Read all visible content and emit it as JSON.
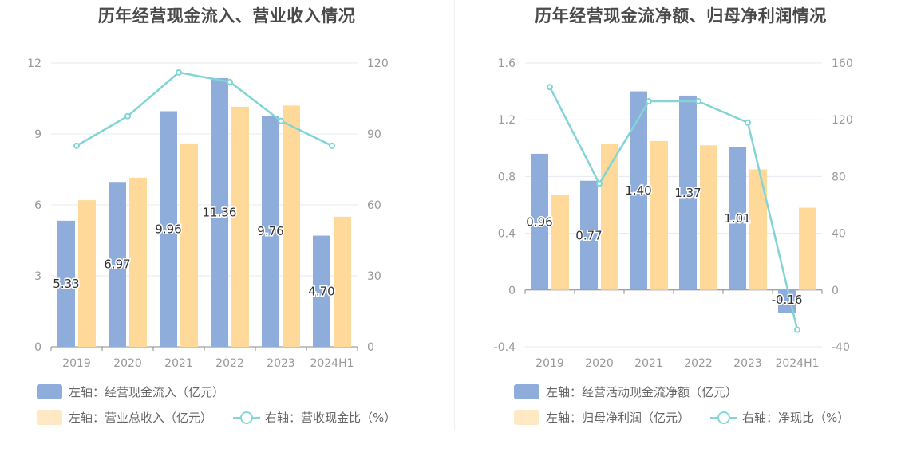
{
  "colors": {
    "bar1": "#8eaddb",
    "bar2": "#ffd99a",
    "line": "#82d4d6",
    "axis": "#999999",
    "grid": "#e6e9f2",
    "label": "#333333"
  },
  "left": {
    "title": "历年经营现金流入、营业收入情况",
    "legend": {
      "bar1": "左轴：经营现金流入（亿元）",
      "bar2": "左轴：营业总收入（亿元）",
      "line": "右轴：营收现金比（%）"
    }
  },
  "right": {
    "title": "历年经营现金流净额、归母净利润情况",
    "legend": {
      "bar1": "左轴：经营活动现金流净额（亿元）",
      "bar2": "左轴：归母净利润（亿元）",
      "line": "右轴：净现比（%）"
    }
  },
  "chart_data": [
    {
      "type": "bar",
      "title": "历年经营现金流入、营业收入情况",
      "categories": [
        "2019",
        "2020",
        "2021",
        "2022",
        "2023",
        "2024H1"
      ],
      "ylim_left": [
        0,
        12
      ],
      "yticks_left": [
        "0",
        "3",
        "6",
        "9",
        "12"
      ],
      "ylim_right": [
        0,
        120
      ],
      "yticks_right": [
        "0",
        "30",
        "60",
        "90",
        "120"
      ],
      "series": [
        {
          "name": "左轴：经营现金流入（亿元）",
          "axis": "left",
          "kind": "bar",
          "values": [
            5.33,
            6.97,
            9.96,
            11.36,
            9.76,
            4.7
          ],
          "labels": [
            "5.33",
            "6.97",
            "9.96",
            "11.36",
            "9.76",
            "4.70"
          ]
        },
        {
          "name": "左轴：营业总收入（亿元）",
          "axis": "left",
          "kind": "bar",
          "values": [
            6.2,
            7.15,
            8.6,
            10.15,
            10.2,
            5.5
          ]
        },
        {
          "name": "右轴：营收现金比（%）",
          "axis": "right",
          "kind": "line",
          "values": [
            85,
            97.5,
            116,
            112,
            95.5,
            85
          ]
        }
      ]
    },
    {
      "type": "bar",
      "title": "历年经营现金流净额、归母净利润情况",
      "categories": [
        "2019",
        "2020",
        "2021",
        "2022",
        "2023",
        "2024H1"
      ],
      "ylim_left": [
        -0.4,
        1.6
      ],
      "yticks_left": [
        "-0.4",
        "0",
        "0.4",
        "0.8",
        "1.2",
        "1.6"
      ],
      "ylim_right": [
        -40,
        160
      ],
      "yticks_right": [
        "-40",
        "0",
        "40",
        "80",
        "120",
        "160"
      ],
      "series": [
        {
          "name": "左轴：经营活动现金流净额（亿元）",
          "axis": "left",
          "kind": "bar",
          "values": [
            0.96,
            0.77,
            1.4,
            1.37,
            1.01,
            -0.16
          ],
          "labels": [
            "0.96",
            "0.77",
            "1.40",
            "1.37",
            "1.01",
            "-0.16"
          ]
        },
        {
          "name": "左轴：归母净利润（亿元）",
          "axis": "left",
          "kind": "bar",
          "values": [
            0.67,
            1.03,
            1.05,
            1.02,
            0.85,
            0.58
          ]
        },
        {
          "name": "右轴：净现比（%）",
          "axis": "right",
          "kind": "line",
          "values": [
            143,
            75,
            133,
            133,
            118,
            -28
          ]
        }
      ]
    }
  ]
}
